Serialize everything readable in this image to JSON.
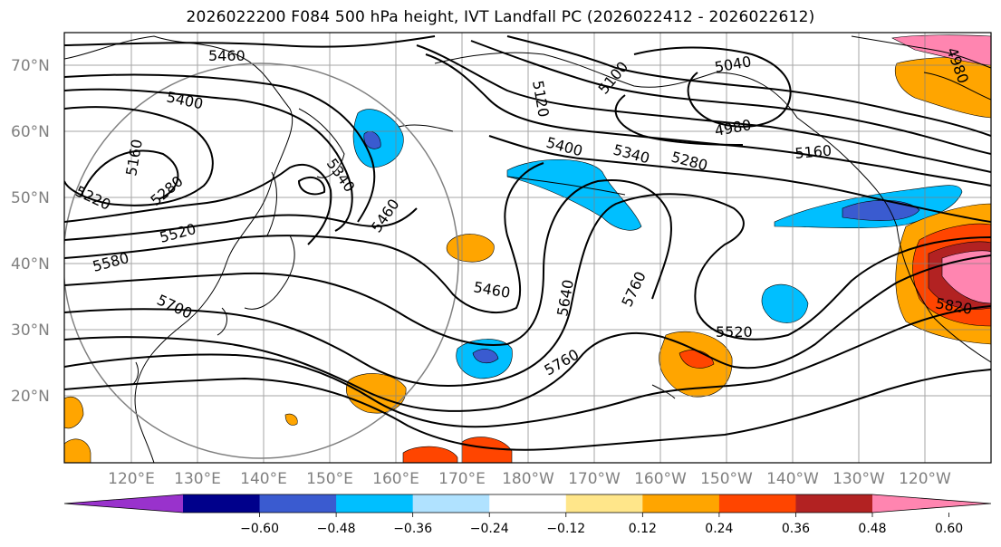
{
  "title": "2026022200 F084 500 hPa height, IVT Landfall PC (2026022412 - 2026022612)",
  "lat_labels": [
    "70°N",
    "60°N",
    "50°N",
    "40°N",
    "30°N",
    "20°N"
  ],
  "lon_labels": [
    "120°E",
    "130°E",
    "140°E",
    "150°E",
    "160°E",
    "170°E",
    "180°W",
    "170°W",
    "160°W",
    "150°W",
    "140°W",
    "130°W",
    "120°W"
  ],
  "contour_labels": [
    "5460",
    "5400",
    "5160",
    "5220",
    "5280",
    "5340",
    "5460",
    "5520",
    "5580",
    "5700",
    "5120",
    "5100",
    "5040",
    "4980",
    "5400",
    "5340",
    "5280",
    "5160",
    "5460",
    "5640",
    "5760",
    "5760",
    "5520",
    "5820",
    "4980"
  ],
  "colorbar": {
    "tick_labels": [
      "−0.60",
      "−0.48",
      "−0.36",
      "−0.24",
      "−0.12",
      "0.12",
      "0.24",
      "0.36",
      "0.48",
      "0.60"
    ],
    "colors": [
      "#9932cc",
      "#00008b",
      "#3a5bd0",
      "#00bfff",
      "#b0e2ff",
      "#ffffff",
      "#ffe68a",
      "#ffa500",
      "#ff4500",
      "#b22222",
      "#ff85b0"
    ]
  }
}
